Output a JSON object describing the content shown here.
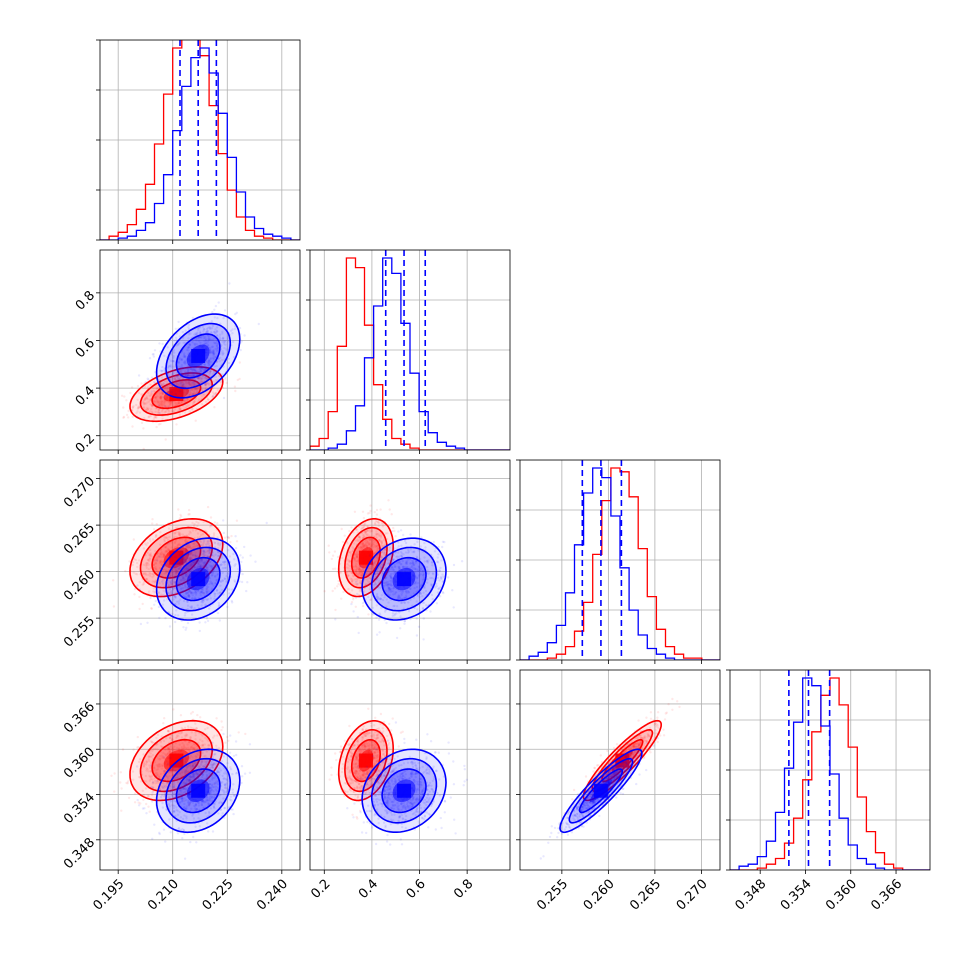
{
  "chart_data": {
    "type": "corner",
    "grid": true,
    "colors": {
      "red": "#ff0000",
      "blue": "#0000ff"
    },
    "parameters": [
      {
        "range": [
          0.19,
          0.245
        ],
        "ticks": [
          "0.195",
          "0.210",
          "0.225",
          "0.240"
        ],
        "tick_values": [
          0.195,
          0.21,
          0.225,
          0.24
        ]
      },
      {
        "range": [
          0.14,
          0.98
        ],
        "ticks": [
          "0.2",
          "0.4",
          "0.6",
          "0.8"
        ],
        "tick_values": [
          0.2,
          0.4,
          0.6,
          0.8
        ]
      },
      {
        "range": [
          0.2505,
          0.272
        ],
        "ticks": [
          "0.255",
          "0.260",
          "0.265",
          "0.270"
        ],
        "tick_values": [
          0.255,
          0.26,
          0.265,
          0.27
        ]
      },
      {
        "range": [
          0.344,
          0.3705
        ],
        "ticks": [
          "0.348",
          "0.354",
          "0.360",
          "0.366"
        ],
        "tick_values": [
          0.348,
          0.354,
          0.36,
          0.366
        ]
      }
    ],
    "series": [
      {
        "color": "#ff0000",
        "means": [
          0.211,
          0.375,
          0.2615,
          0.3585
        ],
        "sigmas": [
          0.0058,
          0.052,
          0.0019,
          0.0024
        ],
        "correlations": {
          "0-1": 0.45,
          "0-2": 0.35,
          "0-3": 0.35,
          "1-2": 0.3,
          "1-3": 0.3,
          "2-3": 0.9
        },
        "histograms": [
          {
            "x0": 0.19,
            "x1": 0.245,
            "counts": [
              0,
              2,
              4,
              8,
              16,
              29,
              50,
              76,
              100,
              109,
              111,
              96,
              70,
              45,
              26,
              12,
              5,
              2,
              1,
              0,
              0,
              0
            ]
          },
          {
            "x0": 0.14,
            "x1": 0.98,
            "counts": [
              2,
              6,
              20,
              54,
              100,
              95,
              65,
              34,
              16,
              6,
              3,
              1,
              0,
              0,
              0,
              0,
              0,
              0,
              0,
              0,
              0,
              0
            ]
          },
          {
            "x0": 0.2505,
            "x1": 0.272,
            "counts": [
              0,
              0,
              0,
              1,
              3,
              7,
              15,
              30,
              55,
              83,
              100,
              98,
              85,
              58,
              33,
              16,
              7,
              3,
              1,
              1,
              0,
              0
            ]
          },
          {
            "x0": 0.344,
            "x1": 0.3705,
            "counts": [
              0,
              0,
              0,
              1,
              3,
              6,
              14,
              27,
              47,
              72,
              91,
              100,
              86,
              64,
              38,
              20,
              9,
              3,
              1,
              0,
              0,
              0
            ]
          }
        ]
      },
      {
        "color": "#0000ff",
        "means": [
          0.217,
          0.535,
          0.2592,
          0.3545
        ],
        "sigmas": [
          0.0052,
          0.08,
          0.002,
          0.0025
        ],
        "correlations": {
          "0-1": 0.4,
          "0-2": 0.25,
          "0-3": 0.25,
          "1-2": 0.2,
          "1-3": 0.2,
          "2-3": 0.9
        },
        "histograms": [
          {
            "x0": 0.19,
            "x1": 0.245,
            "counts": [
              0,
              0,
              1,
              2,
              5,
              9,
              19,
              34,
              57,
              80,
              95,
              100,
              87,
              66,
              43,
              25,
              12,
              6,
              3,
              2,
              1,
              0
            ]
          },
          {
            "x0": 0.14,
            "x1": 0.98,
            "counts": [
              0,
              0,
              1,
              3,
              10,
              23,
              48,
              75,
              100,
              92,
              66,
              40,
              20,
              9,
              4,
              2,
              1,
              0,
              0,
              0,
              0,
              0
            ]
          },
          {
            "x0": 0.2505,
            "x1": 0.272,
            "counts": [
              0,
              2,
              4,
              9,
              18,
              35,
              60,
              87,
              100,
              95,
              75,
              48,
              26,
              13,
              6,
              3,
              1,
              0,
              0,
              0,
              0,
              0
            ]
          },
          {
            "x0": 0.344,
            "x1": 0.3705,
            "counts": [
              0,
              2,
              3,
              7,
              15,
              30,
              53,
              77,
              100,
              96,
              75,
              50,
              27,
              13,
              6,
              3,
              1,
              0,
              0,
              0,
              0,
              0
            ]
          }
        ]
      }
    ],
    "quantile_lines": {
      "color": "#0000ff",
      "style": "dashed",
      "values": [
        [
          0.212,
          0.217,
          0.222
        ],
        [
          0.458,
          0.535,
          0.624
        ],
        [
          0.2572,
          0.2592,
          0.2614
        ],
        [
          0.3518,
          0.3544,
          0.3572
        ]
      ]
    }
  }
}
